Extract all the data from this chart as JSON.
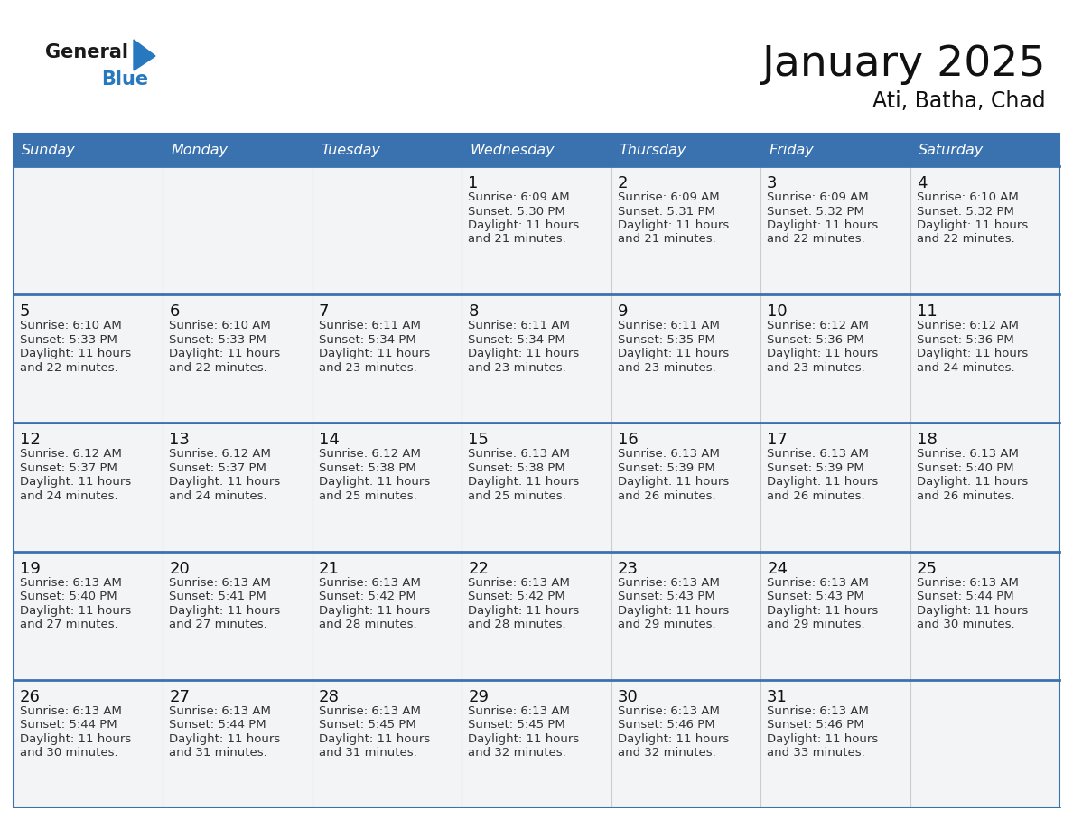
{
  "title": "January 2025",
  "subtitle": "Ati, Batha, Chad",
  "days_of_week": [
    "Sunday",
    "Monday",
    "Tuesday",
    "Wednesday",
    "Thursday",
    "Friday",
    "Saturday"
  ],
  "header_bg": "#3a72b0",
  "header_text": "#ffffff",
  "cell_bg": "#f2f4f6",
  "cell_bg_empty": "#ebebeb",
  "border_color": "#3a72b0",
  "row_separator_color": "#3a72b0",
  "text_color": "#333333",
  "day_number_color": "#111111",
  "calendar": [
    [
      null,
      null,
      null,
      {
        "day": 1,
        "sunrise": "6:09 AM",
        "sunset": "5:30 PM",
        "daylight": "11 hours and 21 minutes."
      },
      {
        "day": 2,
        "sunrise": "6:09 AM",
        "sunset": "5:31 PM",
        "daylight": "11 hours and 21 minutes."
      },
      {
        "day": 3,
        "sunrise": "6:09 AM",
        "sunset": "5:32 PM",
        "daylight": "11 hours and 22 minutes."
      },
      {
        "day": 4,
        "sunrise": "6:10 AM",
        "sunset": "5:32 PM",
        "daylight": "11 hours and 22 minutes."
      }
    ],
    [
      {
        "day": 5,
        "sunrise": "6:10 AM",
        "sunset": "5:33 PM",
        "daylight": "11 hours and 22 minutes."
      },
      {
        "day": 6,
        "sunrise": "6:10 AM",
        "sunset": "5:33 PM",
        "daylight": "11 hours and 22 minutes."
      },
      {
        "day": 7,
        "sunrise": "6:11 AM",
        "sunset": "5:34 PM",
        "daylight": "11 hours and 23 minutes."
      },
      {
        "day": 8,
        "sunrise": "6:11 AM",
        "sunset": "5:34 PM",
        "daylight": "11 hours and 23 minutes."
      },
      {
        "day": 9,
        "sunrise": "6:11 AM",
        "sunset": "5:35 PM",
        "daylight": "11 hours and 23 minutes."
      },
      {
        "day": 10,
        "sunrise": "6:12 AM",
        "sunset": "5:36 PM",
        "daylight": "11 hours and 23 minutes."
      },
      {
        "day": 11,
        "sunrise": "6:12 AM",
        "sunset": "5:36 PM",
        "daylight": "11 hours and 24 minutes."
      }
    ],
    [
      {
        "day": 12,
        "sunrise": "6:12 AM",
        "sunset": "5:37 PM",
        "daylight": "11 hours and 24 minutes."
      },
      {
        "day": 13,
        "sunrise": "6:12 AM",
        "sunset": "5:37 PM",
        "daylight": "11 hours and 24 minutes."
      },
      {
        "day": 14,
        "sunrise": "6:12 AM",
        "sunset": "5:38 PM",
        "daylight": "11 hours and 25 minutes."
      },
      {
        "day": 15,
        "sunrise": "6:13 AM",
        "sunset": "5:38 PM",
        "daylight": "11 hours and 25 minutes."
      },
      {
        "day": 16,
        "sunrise": "6:13 AM",
        "sunset": "5:39 PM",
        "daylight": "11 hours and 26 minutes."
      },
      {
        "day": 17,
        "sunrise": "6:13 AM",
        "sunset": "5:39 PM",
        "daylight": "11 hours and 26 minutes."
      },
      {
        "day": 18,
        "sunrise": "6:13 AM",
        "sunset": "5:40 PM",
        "daylight": "11 hours and 26 minutes."
      }
    ],
    [
      {
        "day": 19,
        "sunrise": "6:13 AM",
        "sunset": "5:40 PM",
        "daylight": "11 hours and 27 minutes."
      },
      {
        "day": 20,
        "sunrise": "6:13 AM",
        "sunset": "5:41 PM",
        "daylight": "11 hours and 27 minutes."
      },
      {
        "day": 21,
        "sunrise": "6:13 AM",
        "sunset": "5:42 PM",
        "daylight": "11 hours and 28 minutes."
      },
      {
        "day": 22,
        "sunrise": "6:13 AM",
        "sunset": "5:42 PM",
        "daylight": "11 hours and 28 minutes."
      },
      {
        "day": 23,
        "sunrise": "6:13 AM",
        "sunset": "5:43 PM",
        "daylight": "11 hours and 29 minutes."
      },
      {
        "day": 24,
        "sunrise": "6:13 AM",
        "sunset": "5:43 PM",
        "daylight": "11 hours and 29 minutes."
      },
      {
        "day": 25,
        "sunrise": "6:13 AM",
        "sunset": "5:44 PM",
        "daylight": "11 hours and 30 minutes."
      }
    ],
    [
      {
        "day": 26,
        "sunrise": "6:13 AM",
        "sunset": "5:44 PM",
        "daylight": "11 hours and 30 minutes."
      },
      {
        "day": 27,
        "sunrise": "6:13 AM",
        "sunset": "5:44 PM",
        "daylight": "11 hours and 31 minutes."
      },
      {
        "day": 28,
        "sunrise": "6:13 AM",
        "sunset": "5:45 PM",
        "daylight": "11 hours and 31 minutes."
      },
      {
        "day": 29,
        "sunrise": "6:13 AM",
        "sunset": "5:45 PM",
        "daylight": "11 hours and 32 minutes."
      },
      {
        "day": 30,
        "sunrise": "6:13 AM",
        "sunset": "5:46 PM",
        "daylight": "11 hours and 32 minutes."
      },
      {
        "day": 31,
        "sunrise": "6:13 AM",
        "sunset": "5:46 PM",
        "daylight": "11 hours and 33 minutes."
      },
      null
    ]
  ],
  "logo_general_color": "#1a1a1a",
  "logo_blue_color": "#2878c0",
  "logo_triangle_color": "#2878c0",
  "fig_width": 11.88,
  "fig_height": 9.18,
  "dpi": 100
}
